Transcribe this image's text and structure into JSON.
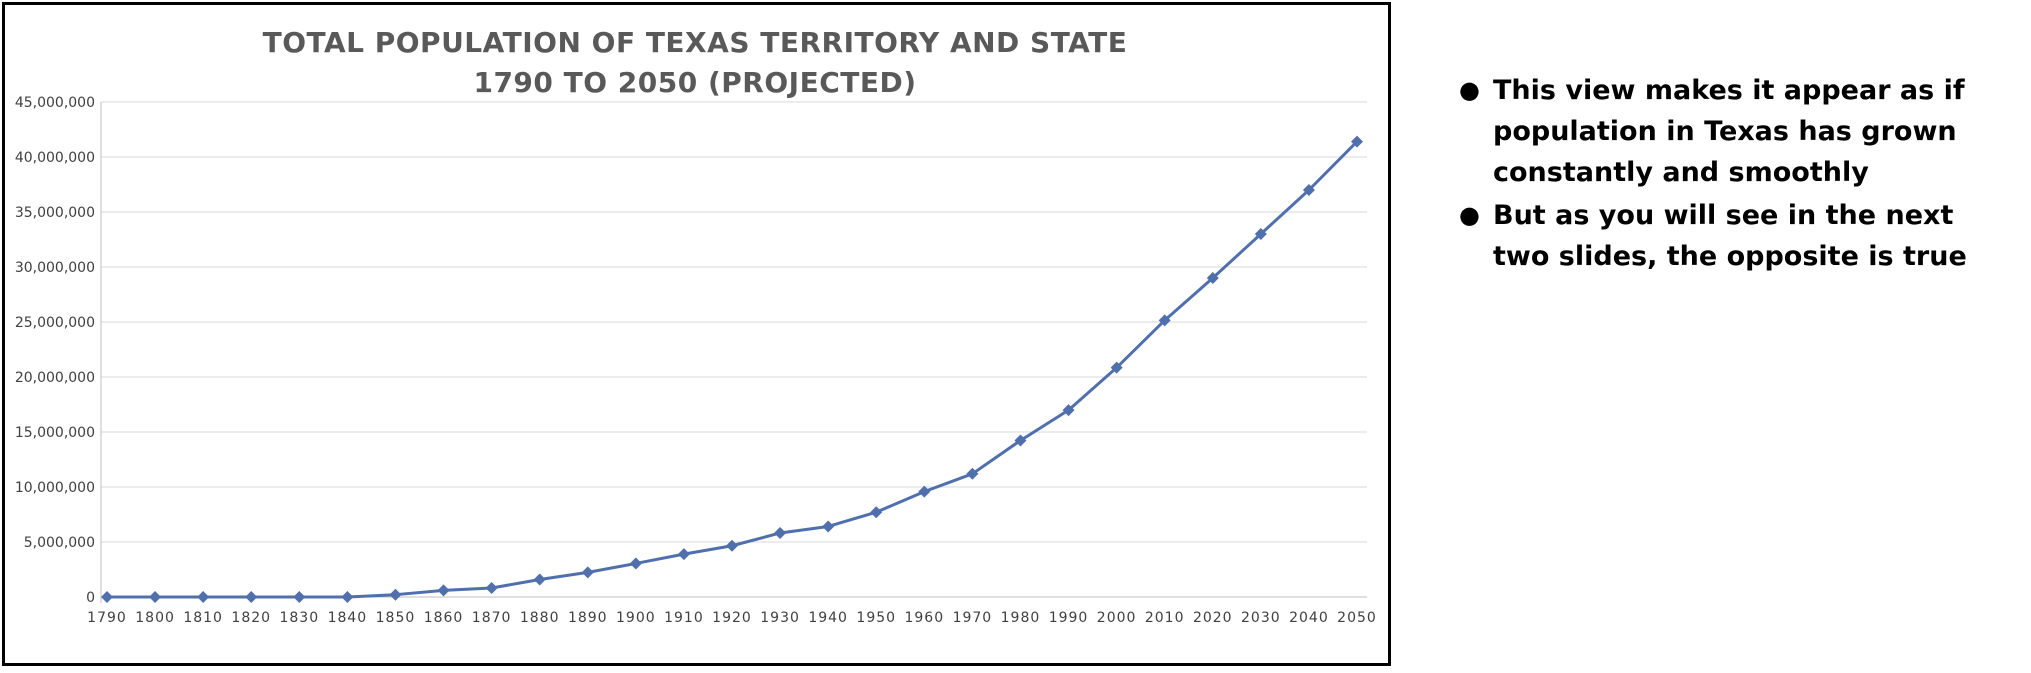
{
  "chart_data": {
    "type": "line",
    "title": "TOTAL POPULATION OF TEXAS TERRITORY AND STATE",
    "subtitle": "1790 TO 2050 (PROJECTED)",
    "xlabel": "",
    "ylabel": "",
    "ylim": [
      0,
      45000000
    ],
    "yticks": [
      0,
      5000000,
      10000000,
      15000000,
      20000000,
      25000000,
      30000000,
      35000000,
      40000000,
      45000000
    ],
    "ytick_labels": [
      "0",
      "5,000,000",
      "10,000,000",
      "15,000,000",
      "20,000,000",
      "25,000,000",
      "30,000,000",
      "35,000,000",
      "40,000,000",
      "45,000,000"
    ],
    "categories": [
      "1790",
      "1800",
      "1810",
      "1820",
      "1830",
      "1840",
      "1850",
      "1860",
      "1870",
      "1880",
      "1890",
      "1900",
      "1910",
      "1920",
      "1930",
      "1940",
      "1950",
      "1960",
      "1970",
      "1980",
      "1990",
      "2000",
      "2010",
      "2020",
      "2030",
      "2040",
      "2050"
    ],
    "series": [
      {
        "values": [
          0,
          0,
          0,
          0,
          0,
          0,
          210000,
          600000,
          820000,
          1590000,
          2240000,
          3050000,
          3900000,
          4660000,
          5820000,
          6410000,
          7710000,
          9580000,
          11200000,
          14230000,
          16990000,
          20850000,
          25150000,
          29000000,
          33000000,
          37000000,
          41400000
        ]
      }
    ],
    "grid": true,
    "legend": "none",
    "line_color": "#4f6fad",
    "grid_color": "#d9d9d9",
    "axis_color": "#bfbfbf",
    "title_color": "#595959"
  },
  "notes": {
    "bullets": [
      "This view makes it appear as if population in Texas has grown constantly and smoothly",
      "But as you will see in the next two slides, the opposite is true"
    ]
  }
}
